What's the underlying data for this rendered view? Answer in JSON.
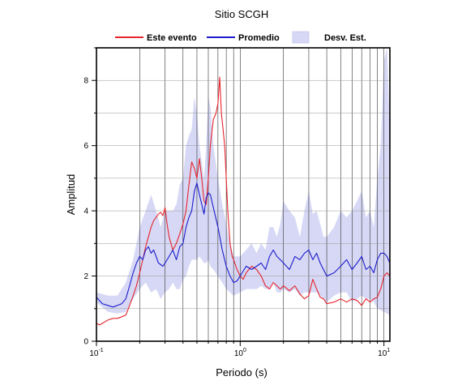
{
  "chart_data": {
    "type": "line",
    "title": "Sitio SCGH",
    "xlabel": "Periodo (s)",
    "ylabel": "Amplitud",
    "x_scale": "log",
    "xlim": [
      0.1,
      11
    ],
    "ylim": [
      0,
      9
    ],
    "x_ticks": [
      {
        "value": 0.1,
        "base": "10",
        "exp": "-1"
      },
      {
        "value": 1,
        "base": "10",
        "exp": "0"
      },
      {
        "value": 10,
        "base": "10",
        "exp": "1"
      }
    ],
    "y_ticks": [
      0,
      2,
      4,
      6,
      8
    ],
    "grid": "vertical log decades, horizontal every 1",
    "legend_position": "top",
    "legend": [
      {
        "label": "Este evento",
        "kind": "line",
        "color": "#e8242c"
      },
      {
        "label": "Promedio",
        "kind": "line",
        "color": "#1c1ccc"
      },
      {
        "label": "Desv. Est.",
        "kind": "band",
        "color": "#d6d8f5"
      }
    ],
    "series": [
      {
        "name": "Este evento",
        "color": "#e8242c",
        "points": [
          [
            0.1,
            0.55
          ],
          [
            0.105,
            0.5
          ],
          [
            0.11,
            0.55
          ],
          [
            0.12,
            0.65
          ],
          [
            0.13,
            0.7
          ],
          [
            0.14,
            0.7
          ],
          [
            0.15,
            0.75
          ],
          [
            0.16,
            0.8
          ],
          [
            0.17,
            1.1
          ],
          [
            0.18,
            1.4
          ],
          [
            0.19,
            1.7
          ],
          [
            0.2,
            2.1
          ],
          [
            0.21,
            2.5
          ],
          [
            0.22,
            2.9
          ],
          [
            0.23,
            3.2
          ],
          [
            0.24,
            3.5
          ],
          [
            0.25,
            3.7
          ],
          [
            0.26,
            3.8
          ],
          [
            0.27,
            3.9
          ],
          [
            0.28,
            3.95
          ],
          [
            0.29,
            3.85
          ],
          [
            0.3,
            4.1
          ],
          [
            0.31,
            3.6
          ],
          [
            0.32,
            3.2
          ],
          [
            0.34,
            2.8
          ],
          [
            0.36,
            3.0
          ],
          [
            0.38,
            3.3
          ],
          [
            0.4,
            3.6
          ],
          [
            0.42,
            4.0
          ],
          [
            0.44,
            4.8
          ],
          [
            0.46,
            5.5
          ],
          [
            0.48,
            5.3
          ],
          [
            0.5,
            5.0
          ],
          [
            0.52,
            5.6
          ],
          [
            0.54,
            5.0
          ],
          [
            0.56,
            4.3
          ],
          [
            0.58,
            4.2
          ],
          [
            0.6,
            5.0
          ],
          [
            0.62,
            6.0
          ],
          [
            0.65,
            6.8
          ],
          [
            0.68,
            7.0
          ],
          [
            0.7,
            7.3
          ],
          [
            0.72,
            8.1
          ],
          [
            0.74,
            7.0
          ],
          [
            0.76,
            6.5
          ],
          [
            0.78,
            6.0
          ],
          [
            0.8,
            5.0
          ],
          [
            0.82,
            4.0
          ],
          [
            0.85,
            3.0
          ],
          [
            0.88,
            2.6
          ],
          [
            0.9,
            2.5
          ],
          [
            0.95,
            2.2
          ],
          [
            1.0,
            2.0
          ],
          [
            1.05,
            1.9
          ],
          [
            1.1,
            2.1
          ],
          [
            1.2,
            2.3
          ],
          [
            1.3,
            2.2
          ],
          [
            1.4,
            2.0
          ],
          [
            1.5,
            1.7
          ],
          [
            1.6,
            1.6
          ],
          [
            1.7,
            1.8
          ],
          [
            1.8,
            1.7
          ],
          [
            1.9,
            1.6
          ],
          [
            2.0,
            1.7
          ],
          [
            2.2,
            1.55
          ],
          [
            2.4,
            1.7
          ],
          [
            2.6,
            1.45
          ],
          [
            2.8,
            1.3
          ],
          [
            3.0,
            1.4
          ],
          [
            3.2,
            1.9
          ],
          [
            3.4,
            1.6
          ],
          [
            3.6,
            1.35
          ],
          [
            3.8,
            1.3
          ],
          [
            4.0,
            1.15
          ],
          [
            4.5,
            1.2
          ],
          [
            5.0,
            1.3
          ],
          [
            5.5,
            1.2
          ],
          [
            6.0,
            1.3
          ],
          [
            6.5,
            1.25
          ],
          [
            7.0,
            1.1
          ],
          [
            7.5,
            1.3
          ],
          [
            8.0,
            1.2
          ],
          [
            8.5,
            1.3
          ],
          [
            9.0,
            1.35
          ],
          [
            9.5,
            1.6
          ],
          [
            10.0,
            2.0
          ],
          [
            10.5,
            2.1
          ],
          [
            11.0,
            2.0
          ]
        ]
      },
      {
        "name": "Promedio",
        "color": "#1c1ccc",
        "points": [
          [
            0.1,
            1.35
          ],
          [
            0.11,
            1.15
          ],
          [
            0.12,
            1.1
          ],
          [
            0.13,
            1.05
          ],
          [
            0.14,
            1.1
          ],
          [
            0.15,
            1.15
          ],
          [
            0.16,
            1.3
          ],
          [
            0.17,
            1.7
          ],
          [
            0.18,
            2.1
          ],
          [
            0.19,
            2.4
          ],
          [
            0.2,
            2.6
          ],
          [
            0.21,
            2.5
          ],
          [
            0.22,
            2.8
          ],
          [
            0.23,
            2.9
          ],
          [
            0.24,
            2.7
          ],
          [
            0.25,
            2.8
          ],
          [
            0.27,
            2.4
          ],
          [
            0.29,
            2.3
          ],
          [
            0.3,
            2.4
          ],
          [
            0.32,
            2.6
          ],
          [
            0.34,
            2.8
          ],
          [
            0.36,
            2.5
          ],
          [
            0.38,
            2.9
          ],
          [
            0.4,
            3.0
          ],
          [
            0.42,
            3.5
          ],
          [
            0.44,
            3.8
          ],
          [
            0.46,
            4.0
          ],
          [
            0.48,
            4.6
          ],
          [
            0.5,
            4.85
          ],
          [
            0.52,
            4.5
          ],
          [
            0.54,
            4.2
          ],
          [
            0.56,
            3.9
          ],
          [
            0.58,
            4.4
          ],
          [
            0.6,
            4.55
          ],
          [
            0.62,
            4.5
          ],
          [
            0.65,
            4.1
          ],
          [
            0.7,
            3.5
          ],
          [
            0.75,
            2.8
          ],
          [
            0.8,
            2.3
          ],
          [
            0.85,
            2.0
          ],
          [
            0.9,
            1.8
          ],
          [
            0.95,
            1.85
          ],
          [
            1.0,
            2.0
          ],
          [
            1.1,
            2.3
          ],
          [
            1.2,
            2.2
          ],
          [
            1.3,
            2.3
          ],
          [
            1.4,
            2.4
          ],
          [
            1.5,
            2.2
          ],
          [
            1.6,
            2.6
          ],
          [
            1.7,
            2.8
          ],
          [
            1.8,
            2.6
          ],
          [
            1.9,
            2.5
          ],
          [
            2.0,
            2.4
          ],
          [
            2.2,
            2.2
          ],
          [
            2.4,
            2.6
          ],
          [
            2.6,
            2.5
          ],
          [
            2.8,
            2.7
          ],
          [
            3.0,
            2.8
          ],
          [
            3.2,
            2.5
          ],
          [
            3.4,
            2.7
          ],
          [
            3.6,
            2.4
          ],
          [
            3.8,
            2.2
          ],
          [
            4.0,
            2.0
          ],
          [
            4.5,
            2.1
          ],
          [
            5.0,
            2.3
          ],
          [
            5.5,
            2.5
          ],
          [
            6.0,
            2.2
          ],
          [
            6.5,
            2.4
          ],
          [
            7.0,
            2.6
          ],
          [
            7.5,
            2.2
          ],
          [
            8.0,
            2.3
          ],
          [
            8.5,
            2.1
          ],
          [
            9.0,
            2.5
          ],
          [
            9.5,
            2.7
          ],
          [
            10.0,
            2.7
          ],
          [
            10.5,
            2.6
          ],
          [
            11.0,
            2.4
          ]
        ]
      }
    ],
    "band": {
      "name": "Desv. Est.",
      "color": "#d6d8f5",
      "upper": [
        [
          0.1,
          1.5
        ],
        [
          0.12,
          1.4
        ],
        [
          0.14,
          1.4
        ],
        [
          0.16,
          1.8
        ],
        [
          0.18,
          2.5
        ],
        [
          0.2,
          3.5
        ],
        [
          0.22,
          4.0
        ],
        [
          0.24,
          4.5
        ],
        [
          0.26,
          4.0
        ],
        [
          0.28,
          3.5
        ],
        [
          0.3,
          4.0
        ],
        [
          0.32,
          4.0
        ],
        [
          0.34,
          4.0
        ],
        [
          0.36,
          4.2
        ],
        [
          0.38,
          4.8
        ],
        [
          0.4,
          5.0
        ],
        [
          0.42,
          6.0
        ],
        [
          0.44,
          6.3
        ],
        [
          0.46,
          6.5
        ],
        [
          0.48,
          7.5
        ],
        [
          0.5,
          7.0
        ],
        [
          0.52,
          6.0
        ],
        [
          0.54,
          5.5
        ],
        [
          0.56,
          5.0
        ],
        [
          0.58,
          6.0
        ],
        [
          0.6,
          7.5
        ],
        [
          0.62,
          7.2
        ],
        [
          0.65,
          6.0
        ],
        [
          0.7,
          5.0
        ],
        [
          0.75,
          4.2
        ],
        [
          0.8,
          3.6
        ],
        [
          0.85,
          3.0
        ],
        [
          0.9,
          2.6
        ],
        [
          1.0,
          2.6
        ],
        [
          1.1,
          2.8
        ],
        [
          1.2,
          3.0
        ],
        [
          1.3,
          2.7
        ],
        [
          1.4,
          3.0
        ],
        [
          1.5,
          2.8
        ],
        [
          1.6,
          3.5
        ],
        [
          1.7,
          3.5
        ],
        [
          1.8,
          3.2
        ],
        [
          1.9,
          3.6
        ],
        [
          2.0,
          4.3
        ],
        [
          2.2,
          4.0
        ],
        [
          2.4,
          3.8
        ],
        [
          2.6,
          3.2
        ],
        [
          2.8,
          4.0
        ],
        [
          3.0,
          4.6
        ],
        [
          3.2,
          3.9
        ],
        [
          3.4,
          4.0
        ],
        [
          3.6,
          3.6
        ],
        [
          3.8,
          3.2
        ],
        [
          4.0,
          3.2
        ],
        [
          4.5,
          3.5
        ],
        [
          5.0,
          4.0
        ],
        [
          5.5,
          3.8
        ],
        [
          6.0,
          4.0
        ],
        [
          6.5,
          4.3
        ],
        [
          7.0,
          4.6
        ],
        [
          7.5,
          3.8
        ],
        [
          8.0,
          4.0
        ],
        [
          8.5,
          3.5
        ],
        [
          9.0,
          5.0
        ],
        [
          9.5,
          6.0
        ],
        [
          10.0,
          8.6
        ],
        [
          10.5,
          9.0
        ],
        [
          11.0,
          6.5
        ]
      ],
      "lower": [
        [
          0.1,
          1.2
        ],
        [
          0.12,
          0.9
        ],
        [
          0.14,
          0.85
        ],
        [
          0.16,
          0.9
        ],
        [
          0.18,
          1.3
        ],
        [
          0.2,
          1.6
        ],
        [
          0.22,
          1.8
        ],
        [
          0.24,
          1.5
        ],
        [
          0.26,
          1.6
        ],
        [
          0.28,
          1.3
        ],
        [
          0.3,
          1.5
        ],
        [
          0.32,
          1.6
        ],
        [
          0.34,
          1.8
        ],
        [
          0.36,
          1.6
        ],
        [
          0.38,
          1.6
        ],
        [
          0.4,
          1.9
        ],
        [
          0.42,
          2.0
        ],
        [
          0.44,
          2.3
        ],
        [
          0.46,
          2.5
        ],
        [
          0.48,
          2.5
        ],
        [
          0.5,
          2.5
        ],
        [
          0.52,
          2.6
        ],
        [
          0.54,
          2.5
        ],
        [
          0.56,
          2.4
        ],
        [
          0.58,
          2.4
        ],
        [
          0.6,
          2.5
        ],
        [
          0.62,
          2.3
        ],
        [
          0.65,
          2.2
        ],
        [
          0.7,
          2.0
        ],
        [
          0.75,
          1.8
        ],
        [
          0.8,
          1.6
        ],
        [
          0.85,
          1.5
        ],
        [
          0.9,
          1.4
        ],
        [
          1.0,
          1.5
        ],
        [
          1.1,
          1.6
        ],
        [
          1.2,
          1.6
        ],
        [
          1.3,
          1.6
        ],
        [
          1.4,
          1.7
        ],
        [
          1.5,
          1.6
        ],
        [
          1.6,
          1.6
        ],
        [
          1.7,
          1.8
        ],
        [
          1.8,
          1.5
        ],
        [
          1.9,
          1.5
        ],
        [
          2.0,
          1.6
        ],
        [
          2.2,
          1.5
        ],
        [
          2.4,
          1.6
        ],
        [
          2.6,
          1.4
        ],
        [
          2.8,
          1.5
        ],
        [
          3.0,
          1.5
        ],
        [
          3.2,
          1.5
        ],
        [
          3.4,
          1.5
        ],
        [
          3.6,
          1.4
        ],
        [
          3.8,
          1.3
        ],
        [
          4.0,
          1.2
        ],
        [
          4.5,
          1.4
        ],
        [
          5.0,
          1.5
        ],
        [
          5.5,
          1.5
        ],
        [
          6.0,
          1.2
        ],
        [
          6.5,
          1.3
        ],
        [
          7.0,
          1.4
        ],
        [
          7.5,
          1.3
        ],
        [
          8.0,
          1.3
        ],
        [
          8.5,
          1.2
        ],
        [
          9.0,
          1.0
        ],
        [
          9.5,
          0.95
        ],
        [
          10.0,
          0.9
        ],
        [
          10.5,
          0.85
        ],
        [
          11.0,
          0.8
        ]
      ]
    }
  }
}
